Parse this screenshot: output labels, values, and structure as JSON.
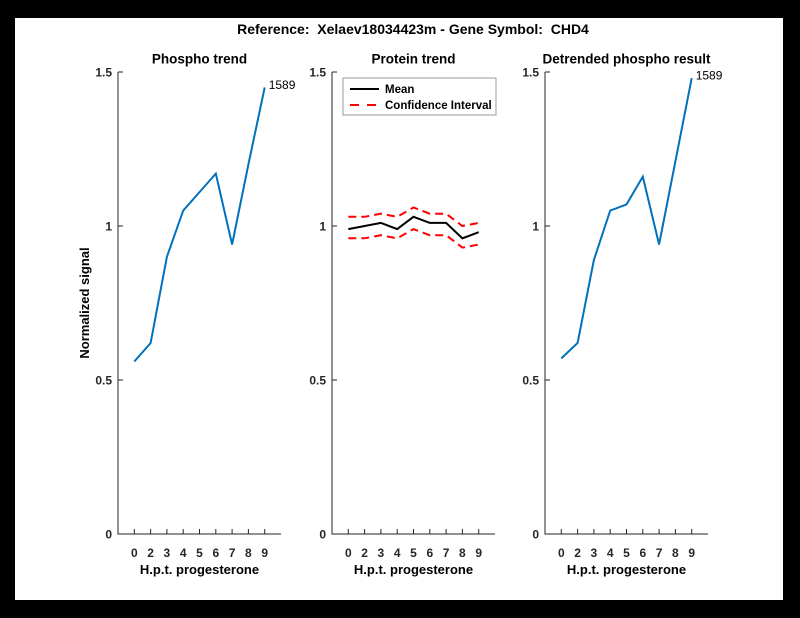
{
  "figure": {
    "title": "Reference:  Xelaev18034423m - Gene Symbol:  CHD4",
    "background_color": "#ffffff",
    "matte_color": "#000000"
  },
  "colors": {
    "line_blue": "#0072BD",
    "ci_red": "#FF0000",
    "mean_black": "#000000",
    "axis_gray": "#262626",
    "legend_border": "#999999"
  },
  "chart_data": [
    {
      "type": "line",
      "title": "Phospho trend",
      "xlabel": "H.p.t. progesterone",
      "ylabel": "Normalized signal",
      "xlim": [
        0,
        10
      ],
      "ylim": [
        0,
        1.5
      ],
      "grid": false,
      "x": [
        1,
        2,
        3,
        4,
        5,
        6,
        7,
        8,
        9
      ],
      "x_tick_labels": [
        "0",
        "2",
        "3",
        "4",
        "5",
        "6",
        "7",
        "8",
        "9"
      ],
      "y_ticks": [
        0,
        0.5,
        1,
        1.5
      ],
      "y_tick_labels": [
        "0",
        "0.5",
        "1",
        "1.5"
      ],
      "series": [
        {
          "name": "phospho-trend",
          "color": "#0072BD",
          "style": "solid",
          "values": [
            0.56,
            0.62,
            0.9,
            1.05,
            1.11,
            1.17,
            0.94,
            1.2,
            1.45
          ]
        }
      ],
      "annotation": {
        "text": "1589",
        "x": 9,
        "y": 1.45
      },
      "legend": null
    },
    {
      "type": "line",
      "title": "Protein trend",
      "xlabel": "H.p.t. progesterone",
      "ylabel": "",
      "xlim": [
        0,
        10
      ],
      "ylim": [
        0,
        1.5
      ],
      "grid": false,
      "x": [
        1,
        2,
        3,
        4,
        5,
        6,
        7,
        8,
        9
      ],
      "x_tick_labels": [
        "0",
        "2",
        "3",
        "4",
        "5",
        "6",
        "7",
        "8",
        "9"
      ],
      "y_ticks": [
        0,
        0.5,
        1,
        1.5
      ],
      "y_tick_labels": [
        "0",
        "0.5",
        "1",
        "1.5"
      ],
      "series": [
        {
          "name": "mean",
          "color": "#000000",
          "style": "solid",
          "values": [
            0.99,
            1.0,
            1.01,
            0.99,
            1.03,
            1.01,
            1.01,
            0.96,
            0.98
          ]
        },
        {
          "name": "ci-upper",
          "color": "#FF0000",
          "style": "dashed",
          "values": [
            1.03,
            1.03,
            1.04,
            1.03,
            1.06,
            1.04,
            1.04,
            1.0,
            1.01
          ]
        },
        {
          "name": "ci-lower",
          "color": "#FF0000",
          "style": "dashed",
          "values": [
            0.96,
            0.96,
            0.97,
            0.96,
            0.99,
            0.97,
            0.97,
            0.93,
            0.94
          ]
        }
      ],
      "annotation": null,
      "legend": {
        "position": "northeast",
        "entries": [
          {
            "label": "Mean",
            "color": "#000000",
            "style": "solid"
          },
          {
            "label": "Confidence Interval",
            "color": "#FF0000",
            "style": "dashed"
          }
        ]
      }
    },
    {
      "type": "line",
      "title": "Detrended phospho result",
      "xlabel": "H.p.t. progesterone",
      "ylabel": "",
      "xlim": [
        0,
        10
      ],
      "ylim": [
        0,
        1.5
      ],
      "grid": false,
      "x": [
        1,
        2,
        3,
        4,
        5,
        6,
        7,
        8,
        9
      ],
      "x_tick_labels": [
        "0",
        "2",
        "3",
        "4",
        "5",
        "6",
        "7",
        "8",
        "9"
      ],
      "y_ticks": [
        0,
        0.5,
        1,
        1.5
      ],
      "y_tick_labels": [
        "0",
        "0.5",
        "1",
        "1.5"
      ],
      "series": [
        {
          "name": "detrended-phospho",
          "color": "#0072BD",
          "style": "solid",
          "values": [
            0.57,
            0.62,
            0.89,
            1.05,
            1.07,
            1.16,
            0.94,
            1.21,
            1.48
          ]
        }
      ],
      "annotation": {
        "text": "1589",
        "x": 9,
        "y": 1.48
      },
      "legend": null
    }
  ]
}
